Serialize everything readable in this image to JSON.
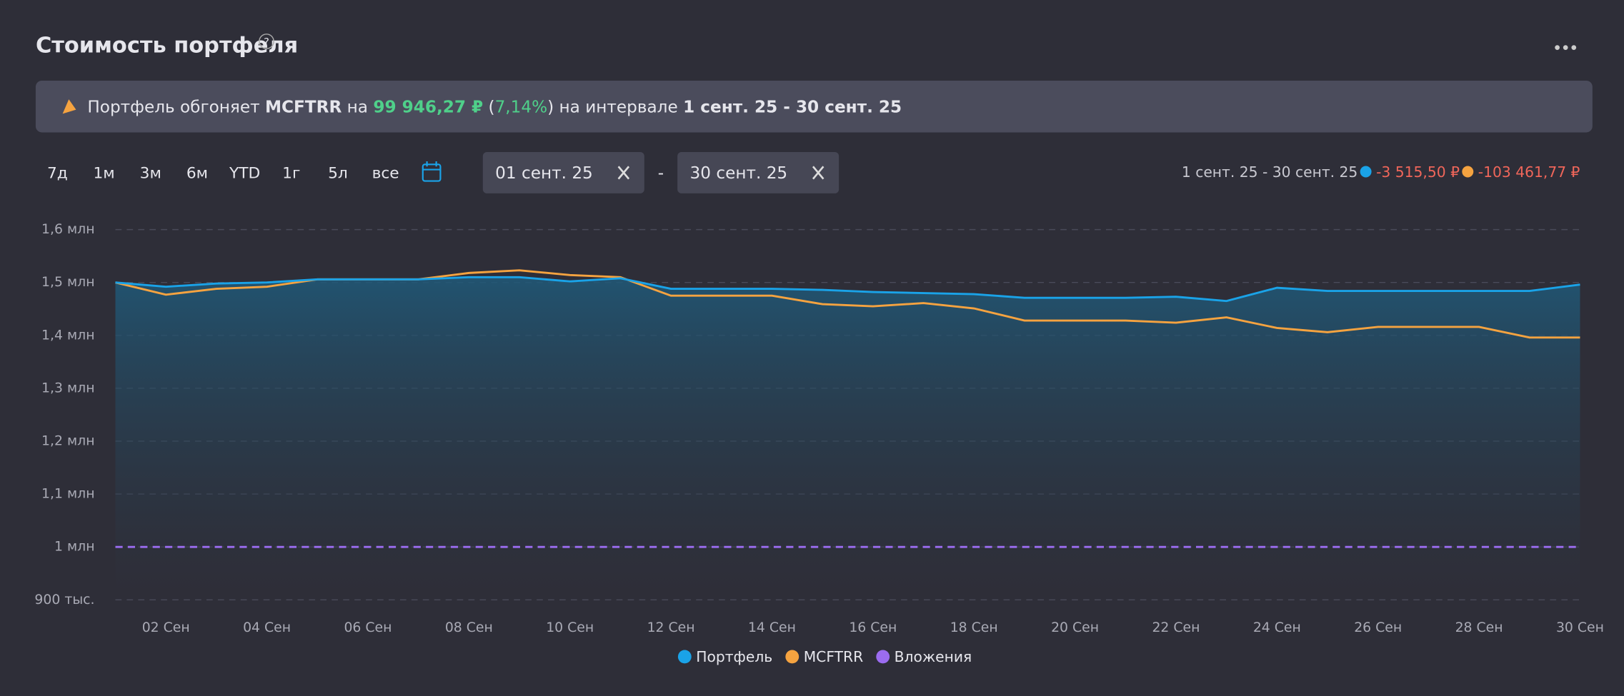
{
  "header": {
    "title": "Стоимость портфеля",
    "help": "?"
  },
  "banner": {
    "parts": [
      "Портфель обгоняет ",
      "MCFTRR",
      " на ",
      "99 946,27 ₽",
      " (",
      "7,14%",
      ") на интервале ",
      "1 сент. 25 - 30 сент. 25"
    ]
  },
  "periods": [
    "7д",
    "1м",
    "3м",
    "6м",
    "YTD",
    "1г",
    "5л",
    "все"
  ],
  "date_from": "01 сент. 25",
  "date_sep": "-",
  "date_to": "30 сент. 25",
  "summary": {
    "interval": "1 сент. 25 - 30 сент. 25",
    "changes": [
      "-3 515,50 ₽",
      "-103 461,77 ₽"
    ]
  },
  "chart_data": {
    "type": "line",
    "categories": [
      null,
      "02 Сен",
      null,
      "04 Сен",
      null,
      "06 Сен",
      null,
      "08 Сен",
      null,
      "10 Сен",
      null,
      "12 Сен",
      null,
      "14 Сен",
      null,
      "16 Сен",
      null,
      "18 Сен",
      null,
      "20 Сен",
      null,
      "22 Сен",
      null,
      "24 Сен",
      null,
      "26 Сен",
      null,
      "28 Сен",
      null,
      "30 Сен"
    ],
    "series": [
      {
        "name": "Портфель",
        "color": "#1aa3e8",
        "values": [
          1500000,
          1492000,
          1498000,
          1500000,
          1506000,
          1506000,
          1506000,
          1510000,
          1510000,
          1502000,
          1508000,
          1488000,
          1488000,
          1488000,
          1486000,
          1482000,
          1480000,
          1478000,
          1471000,
          1471000,
          1471000,
          1473000,
          1465000,
          1490000,
          1484000,
          1484000,
          1484000,
          1484000,
          1484000,
          1496000
        ]
      },
      {
        "name": "MCFTRR",
        "color": "#f5a340",
        "values": [
          1500000,
          1477000,
          1488000,
          1492000,
          1506000,
          1506000,
          1506000,
          1518000,
          1523000,
          1514000,
          1510000,
          1475000,
          1475000,
          1475000,
          1459000,
          1455000,
          1461000,
          1451000,
          1428000,
          1428000,
          1428000,
          1424000,
          1434000,
          1414000,
          1406000,
          1416000,
          1416000,
          1416000,
          1396000,
          1396000
        ]
      },
      {
        "name": "Вложения",
        "color": "#9b6cf0",
        "values": [
          1000000,
          1000000,
          1000000,
          1000000,
          1000000,
          1000000,
          1000000,
          1000000,
          1000000,
          1000000,
          1000000,
          1000000,
          1000000,
          1000000,
          1000000,
          1000000,
          1000000,
          1000000,
          1000000,
          1000000,
          1000000,
          1000000,
          1000000,
          1000000,
          1000000,
          1000000,
          1000000,
          1000000,
          1000000,
          1000000
        ]
      }
    ],
    "ylim": [
      900000,
      1600000
    ],
    "yticks": [
      {
        "value": 900000,
        "label": "900 тыс."
      },
      {
        "value": 1000000,
        "label": "1 млн"
      },
      {
        "value": 1100000,
        "label": "1,1 млн"
      },
      {
        "value": 1200000,
        "label": "1,2 млн"
      },
      {
        "value": 1300000,
        "label": "1,3 млн"
      },
      {
        "value": 1400000,
        "label": "1,4 млн"
      },
      {
        "value": 1500000,
        "label": "1,5 млн"
      },
      {
        "value": 1600000,
        "label": "1,6 млн"
      }
    ],
    "grid": true
  }
}
